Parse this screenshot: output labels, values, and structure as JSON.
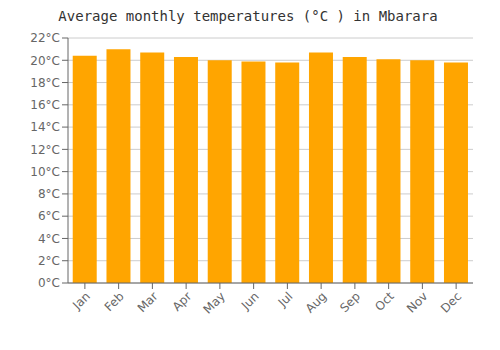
{
  "chart_data": {
    "type": "bar",
    "title": "Average monthly temperatures (°C ) in Mbarara",
    "categories": [
      "Jan",
      "Feb",
      "Mar",
      "Apr",
      "May",
      "Jun",
      "Jul",
      "Aug",
      "Sep",
      "Oct",
      "Nov",
      "Dec"
    ],
    "values": [
      20.4,
      21.0,
      20.7,
      20.3,
      20.0,
      19.9,
      19.8,
      20.7,
      20.3,
      20.1,
      20.0,
      19.8
    ],
    "color": "#FFA500",
    "ylim": [
      0,
      22
    ],
    "yticks": [
      {
        "value": 0,
        "label": "0°C"
      },
      {
        "value": 2,
        "label": "2°C"
      },
      {
        "value": 4,
        "label": "4°C"
      },
      {
        "value": 6,
        "label": "6°C"
      },
      {
        "value": 8,
        "label": "8°C"
      },
      {
        "value": 10,
        "label": "10°C"
      },
      {
        "value": 12,
        "label": "12°C"
      },
      {
        "value": 14,
        "label": "14°C"
      },
      {
        "value": 16,
        "label": "16°C"
      },
      {
        "value": 18,
        "label": "18°C"
      },
      {
        "value": 20,
        "label": "20°C"
      },
      {
        "value": 22,
        "label": "22°C"
      }
    ],
    "grid": true
  }
}
